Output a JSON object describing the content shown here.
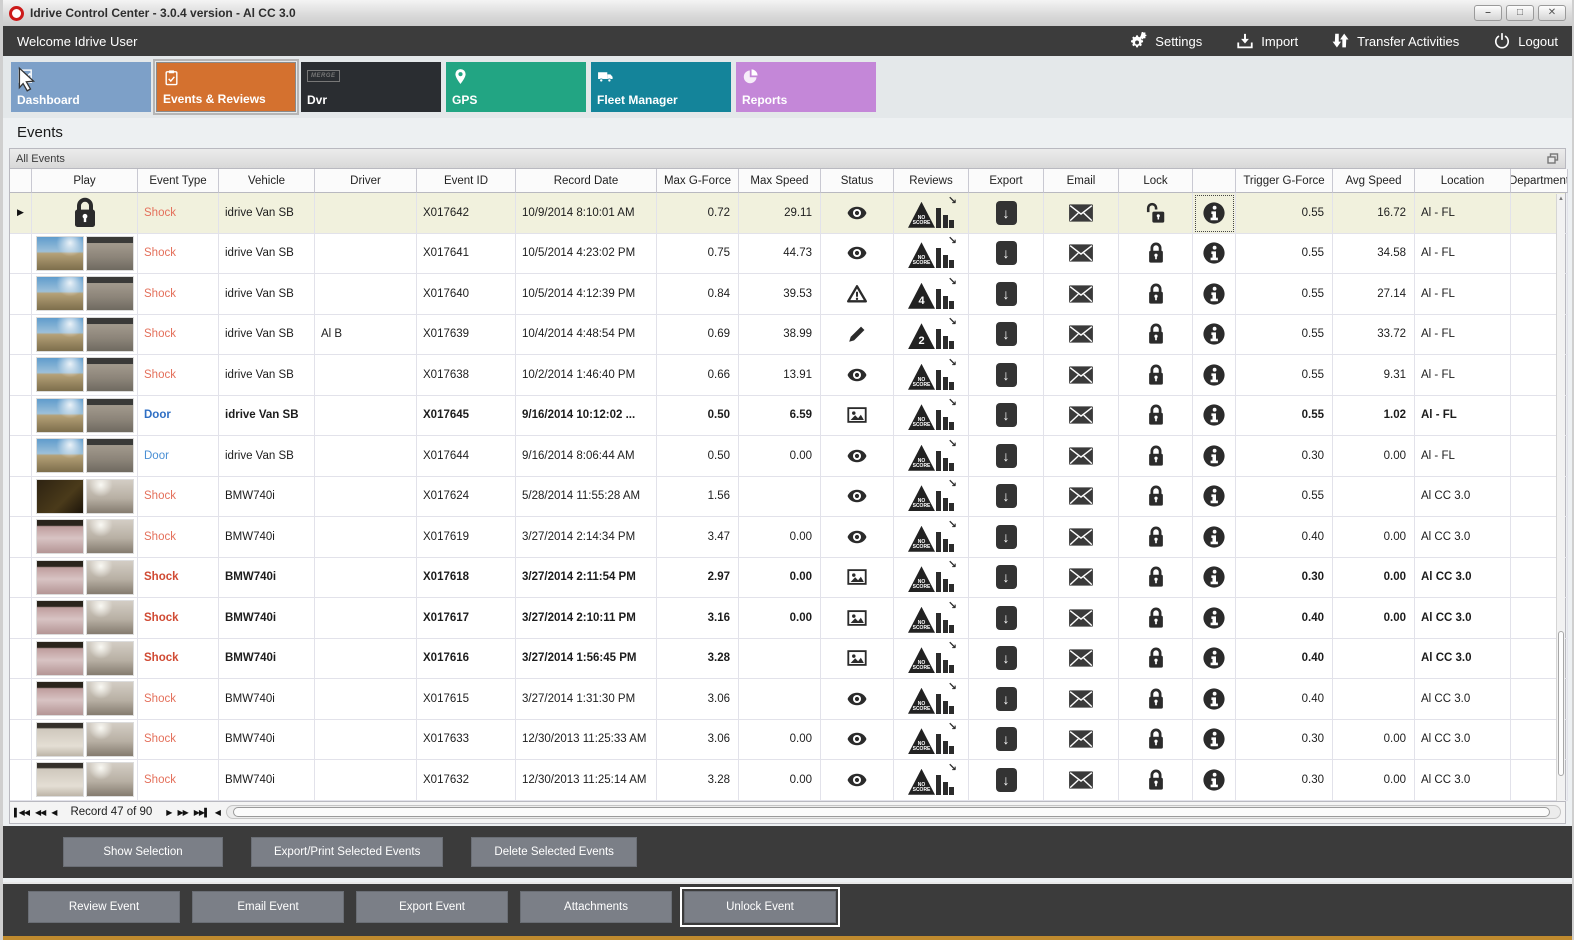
{
  "window": {
    "title": "Idrive Control Center - 3.0.4 version - Al CC 3.0"
  },
  "menubar": {
    "welcome": "Welcome Idrive User",
    "actions": [
      {
        "label": "Settings",
        "icon": "gear-icon"
      },
      {
        "label": "Import",
        "icon": "import-icon"
      },
      {
        "label": "Transfer Activities",
        "icon": "transfer-icon"
      },
      {
        "label": "Logout",
        "icon": "power-icon"
      }
    ]
  },
  "tabs": [
    {
      "label": "Dashboard",
      "icon": "chart-icon",
      "color": "#7da0c8",
      "selected": false
    },
    {
      "label": "Events & Reviews",
      "icon": "clipboard-icon",
      "color": "#d4712f",
      "selected": true
    },
    {
      "label": "Dvr",
      "icon": "merge-icon",
      "color": "#2a2d31",
      "selected": false,
      "icon_text": "MERGE"
    },
    {
      "label": "GPS",
      "icon": "pin-icon",
      "color": "#22a583",
      "selected": false
    },
    {
      "label": "Fleet Manager",
      "icon": "truck-icon",
      "color": "#14849a",
      "selected": false
    },
    {
      "label": "Reports",
      "icon": "pie-icon",
      "color": "#c487d8",
      "selected": false
    }
  ],
  "page": {
    "title": "Events",
    "group_title": "All Events"
  },
  "table": {
    "columns": [
      "",
      "Play",
      "Event Type",
      "Vehicle",
      "Driver",
      "Event ID",
      "Record Date",
      "Max G-Force",
      "Max Speed",
      "Status",
      "Reviews",
      "Export",
      "Email",
      "Lock",
      "",
      "Trigger G-Force",
      "Avg Speed",
      "Location",
      "Department"
    ],
    "colors": {
      "shock": "#e4705b",
      "door": "#4a8fd4",
      "selected_row": "#f1f1dd"
    },
    "rows": [
      {
        "selected": true,
        "focus_info": true,
        "play": "lock",
        "event_type": "Shock",
        "type_class": "shock",
        "vehicle": "idrive Van SB",
        "driver": "",
        "event_id": "X017642",
        "record_date": "10/9/2014 8:10:01 AM",
        "max_g": "0.72",
        "max_speed": "29.11",
        "status": "eye",
        "review": "NO SCORE",
        "lock": "unlocked",
        "trigger_g": "0.55",
        "avg_speed": "16.72",
        "location": "Al - FL",
        "bold": false
      },
      {
        "play": "van",
        "event_type": "Shock",
        "type_class": "shock",
        "vehicle": "idrive Van SB",
        "driver": "",
        "event_id": "X017641",
        "record_date": "10/5/2014 4:23:02 PM",
        "max_g": "0.75",
        "max_speed": "44.73",
        "status": "eye",
        "review": "NO SCORE",
        "lock": "locked",
        "trigger_g": "0.55",
        "avg_speed": "34.58",
        "location": "Al - FL",
        "bold": false
      },
      {
        "play": "van",
        "event_type": "Shock",
        "type_class": "shock",
        "vehicle": "idrive Van SB",
        "driver": "",
        "event_id": "X017640",
        "record_date": "10/5/2014 4:12:39 PM",
        "max_g": "0.84",
        "max_speed": "39.53",
        "status": "warn",
        "review": "4",
        "lock": "locked",
        "trigger_g": "0.55",
        "avg_speed": "27.14",
        "location": "Al - FL",
        "bold": false
      },
      {
        "play": "van",
        "event_type": "Shock",
        "type_class": "shock",
        "vehicle": "idrive Van SB",
        "driver": "Al B",
        "event_id": "X017639",
        "record_date": "10/4/2014 4:48:54 PM",
        "max_g": "0.69",
        "max_speed": "38.99",
        "status": "pencil",
        "review": "2",
        "lock": "locked",
        "trigger_g": "0.55",
        "avg_speed": "33.72",
        "location": "Al - FL",
        "bold": false
      },
      {
        "play": "van",
        "event_type": "Shock",
        "type_class": "shock",
        "vehicle": "idrive Van SB",
        "driver": "",
        "event_id": "X017638",
        "record_date": "10/2/2014 1:46:40 PM",
        "max_g": "0.66",
        "max_speed": "13.91",
        "status": "eye",
        "review": "NO SCORE",
        "lock": "locked",
        "trigger_g": "0.55",
        "avg_speed": "9.31",
        "location": "Al - FL",
        "bold": false
      },
      {
        "play": "van",
        "event_type": "Door",
        "type_class": "door",
        "vehicle": "idrive Van SB",
        "driver": "",
        "event_id": "X017645",
        "record_date": "9/16/2014 10:12:02 ...",
        "max_g": "0.50",
        "max_speed": "6.59",
        "status": "photo",
        "review": "NO SCORE",
        "lock": "locked",
        "trigger_g": "0.55",
        "avg_speed": "1.02",
        "location": "Al - FL",
        "bold": true
      },
      {
        "play": "van",
        "event_type": "Door",
        "type_class": "door",
        "vehicle": "idrive Van SB",
        "driver": "",
        "event_id": "X017644",
        "record_date": "9/16/2014 8:06:44 AM",
        "max_g": "0.50",
        "max_speed": "0.00",
        "status": "eye",
        "review": "NO SCORE",
        "lock": "locked",
        "trigger_g": "0.30",
        "avg_speed": "0.00",
        "location": "Al - FL",
        "bold": false
      },
      {
        "play": "bmw-dark",
        "event_type": "Shock",
        "type_class": "shock",
        "vehicle": "BMW740i",
        "driver": "",
        "event_id": "X017624",
        "record_date": "5/28/2014 11:55:28 AM",
        "max_g": "1.56",
        "max_speed": "",
        "status": "eye",
        "review": "NO SCORE",
        "lock": "locked",
        "trigger_g": "0.55",
        "avg_speed": "",
        "location": "Al CC 3.0",
        "bold": false
      },
      {
        "play": "bmw-pink",
        "event_type": "Shock",
        "type_class": "shock",
        "vehicle": "BMW740i",
        "driver": "",
        "event_id": "X017619",
        "record_date": "3/27/2014 2:14:34 PM",
        "max_g": "3.47",
        "max_speed": "0.00",
        "status": "eye",
        "review": "NO SCORE",
        "lock": "locked",
        "trigger_g": "0.40",
        "avg_speed": "0.00",
        "location": "Al CC 3.0",
        "bold": false
      },
      {
        "play": "bmw-pink",
        "event_type": "Shock",
        "type_class": "shock",
        "vehicle": "BMW740i",
        "driver": "",
        "event_id": "X017618",
        "record_date": "3/27/2014 2:11:54 PM",
        "max_g": "2.97",
        "max_speed": "0.00",
        "status": "photo",
        "review": "NO SCORE",
        "lock": "locked",
        "trigger_g": "0.30",
        "avg_speed": "0.00",
        "location": "Al CC 3.0",
        "bold": true
      },
      {
        "play": "bmw-pink",
        "event_type": "Shock",
        "type_class": "shock",
        "vehicle": "BMW740i",
        "driver": "",
        "event_id": "X017617",
        "record_date": "3/27/2014 2:10:11 PM",
        "max_g": "3.16",
        "max_speed": "0.00",
        "status": "photo",
        "review": "NO SCORE",
        "lock": "locked",
        "trigger_g": "0.40",
        "avg_speed": "0.00",
        "location": "Al CC 3.0",
        "bold": true
      },
      {
        "play": "bmw-pink",
        "event_type": "Shock",
        "type_class": "shock",
        "vehicle": "BMW740i",
        "driver": "",
        "event_id": "X017616",
        "record_date": "3/27/2014 1:56:45 PM",
        "max_g": "3.28",
        "max_speed": "",
        "status": "photo",
        "review": "NO SCORE",
        "lock": "locked",
        "trigger_g": "0.40",
        "avg_speed": "",
        "location": "Al CC 3.0",
        "bold": true
      },
      {
        "play": "bmw-pink",
        "event_type": "Shock",
        "type_class": "shock",
        "vehicle": "BMW740i",
        "driver": "",
        "event_id": "X017615",
        "record_date": "3/27/2014 1:31:30 PM",
        "max_g": "3.06",
        "max_speed": "",
        "status": "eye",
        "review": "NO SCORE",
        "lock": "locked",
        "trigger_g": "0.40",
        "avg_speed": "",
        "location": "Al CC 3.0",
        "bold": false
      },
      {
        "play": "bmw-light",
        "event_type": "Shock",
        "type_class": "shock",
        "vehicle": "BMW740i",
        "driver": "",
        "event_id": "X017633",
        "record_date": "12/30/2013 11:25:33 AM",
        "max_g": "3.06",
        "max_speed": "0.00",
        "status": "eye",
        "review": "NO SCORE",
        "lock": "locked",
        "trigger_g": "0.30",
        "avg_speed": "0.00",
        "location": "Al CC 3.0",
        "bold": false
      },
      {
        "play": "bmw-light",
        "event_type": "Shock",
        "type_class": "shock",
        "vehicle": "BMW740i",
        "driver": "",
        "event_id": "X017632",
        "record_date": "12/30/2013 11:25:14 AM",
        "max_g": "3.28",
        "max_speed": "0.00",
        "status": "eye",
        "review": "NO SCORE",
        "lock": "locked",
        "trigger_g": "0.30",
        "avg_speed": "0.00",
        "location": "Al CC 3.0",
        "bold": false
      }
    ]
  },
  "pagination": {
    "label": "Record 47 of 90"
  },
  "selection_actions": [
    {
      "label": "Show Selection"
    },
    {
      "label": "Export/Print Selected Events"
    },
    {
      "label": "Delete Selected  Events"
    }
  ],
  "event_actions": [
    {
      "label": "Review Event"
    },
    {
      "label": "Email Event"
    },
    {
      "label": "Export Event"
    },
    {
      "label": "Attachments"
    },
    {
      "label": "Unlock Event",
      "focused": true
    }
  ]
}
